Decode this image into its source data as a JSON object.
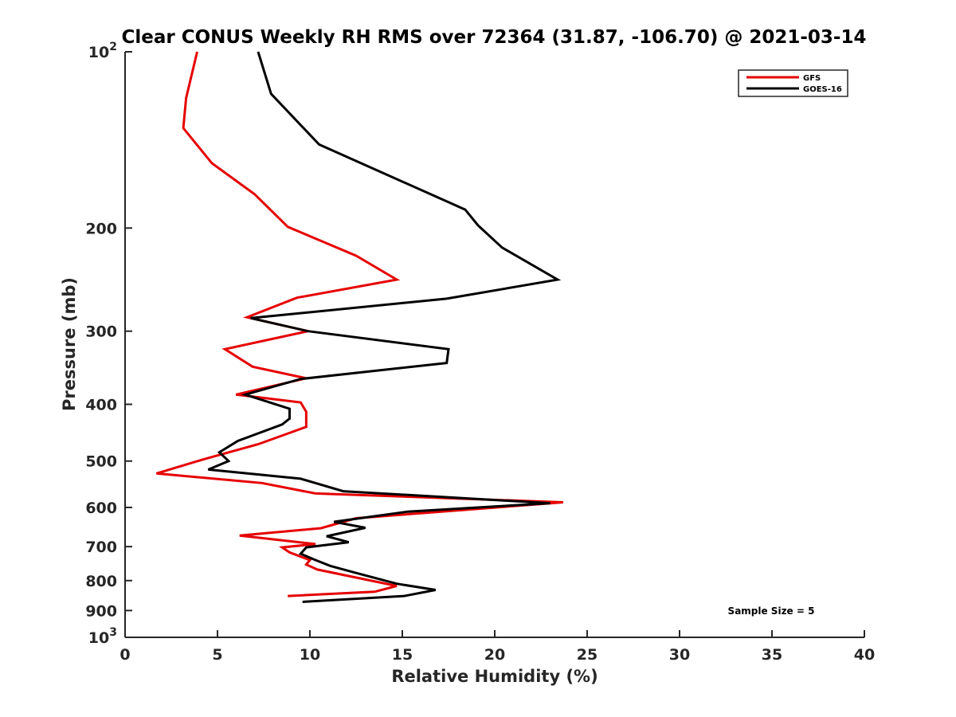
{
  "chart_data": {
    "type": "line",
    "title": "Clear CONUS Weekly RH RMS over 72364 (31.87, -106.70) @ 2021-03-14",
    "xlabel": "Relative Humidity (%)",
    "ylabel": "Pressure (mb)",
    "xlim": [
      0,
      40
    ],
    "ylim": [
      100,
      1000
    ],
    "yscale": "log",
    "y_reversed": true,
    "grid": false,
    "legend_position": "top-right",
    "x_ticks": [
      0,
      5,
      10,
      15,
      20,
      25,
      30,
      35,
      40
    ],
    "x_tick_labels": [
      "0",
      "5",
      "10",
      "15",
      "20",
      "25",
      "30",
      "35",
      "40"
    ],
    "y_ticks": [
      100,
      200,
      300,
      400,
      500,
      600,
      700,
      800,
      900,
      1000
    ],
    "y_tick_labels": [
      {
        "base": "10",
        "exp": "2"
      },
      {
        "base": "200",
        "exp": ""
      },
      {
        "base": "300",
        "exp": ""
      },
      {
        "base": "400",
        "exp": ""
      },
      {
        "base": "500",
        "exp": ""
      },
      {
        "base": "600",
        "exp": ""
      },
      {
        "base": "700",
        "exp": ""
      },
      {
        "base": "800",
        "exp": ""
      },
      {
        "base": "900",
        "exp": ""
      },
      {
        "base": "10",
        "exp": "3"
      }
    ],
    "annotation": "Sample Size = 5",
    "series": [
      {
        "name": "GFS",
        "color": "#e60000",
        "points": [
          [
            3.9,
            100
          ],
          [
            3.3,
            120
          ],
          [
            3.15,
            135
          ],
          [
            4.7,
            155
          ],
          [
            7.0,
            175
          ],
          [
            8.8,
            199
          ],
          [
            12.5,
            223
          ],
          [
            14.7,
            245
          ],
          [
            9.3,
            263
          ],
          [
            6.6,
            284
          ],
          [
            9.9,
            300
          ],
          [
            5.4,
            322
          ],
          [
            6.9,
            345
          ],
          [
            9.8,
            361
          ],
          [
            6.0,
            385
          ],
          [
            9.5,
            397
          ],
          [
            9.8,
            412
          ],
          [
            9.8,
            437
          ],
          [
            7.2,
            468
          ],
          [
            4.3,
            496
          ],
          [
            1.7,
            525
          ],
          [
            7.4,
            545
          ],
          [
            10.3,
            568
          ],
          [
            23.7,
            588
          ],
          [
            12.5,
            626
          ],
          [
            10.6,
            651
          ],
          [
            6.2,
            670
          ],
          [
            10.3,
            693
          ],
          [
            8.5,
            702
          ],
          [
            8.9,
            716
          ],
          [
            10.0,
            738
          ],
          [
            9.8,
            751
          ],
          [
            10.4,
            766
          ],
          [
            14.7,
            817
          ],
          [
            13.5,
            836
          ],
          [
            8.8,
            850
          ]
        ]
      },
      {
        "name": "GOES-16",
        "color": "#000000",
        "points": [
          [
            7.2,
            100
          ],
          [
            7.9,
            118
          ],
          [
            10.5,
            144
          ],
          [
            18.4,
            186
          ],
          [
            19.1,
            198
          ],
          [
            20.4,
            216
          ],
          [
            23.4,
            245
          ],
          [
            17.4,
            264
          ],
          [
            6.8,
            285
          ],
          [
            9.9,
            300
          ],
          [
            17.5,
            322
          ],
          [
            17.4,
            340
          ],
          [
            9.5,
            362
          ],
          [
            6.5,
            385
          ],
          [
            8.9,
            407
          ],
          [
            8.9,
            423
          ],
          [
            8.5,
            433
          ],
          [
            6.1,
            462
          ],
          [
            5.1,
            483
          ],
          [
            5.6,
            500
          ],
          [
            4.5,
            517
          ],
          [
            9.5,
            536
          ],
          [
            11.8,
            563
          ],
          [
            23.0,
            590
          ],
          [
            15.3,
            610
          ],
          [
            11.3,
            635
          ],
          [
            13.0,
            650
          ],
          [
            10.9,
            672
          ],
          [
            12.1,
            688
          ],
          [
            9.8,
            702
          ],
          [
            9.5,
            720
          ],
          [
            10.3,
            738
          ],
          [
            11.1,
            755
          ],
          [
            12.4,
            775
          ],
          [
            14.7,
            810
          ],
          [
            16.8,
            830
          ],
          [
            15.1,
            850
          ],
          [
            9.6,
            870
          ]
        ]
      }
    ]
  }
}
